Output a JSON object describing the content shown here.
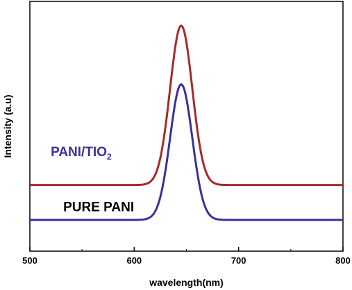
{
  "chart_data": {
    "type": "line",
    "title": "",
    "xlabel": "wavelength(nm)",
    "ylabel": "Intensity (a.u)",
    "xlim": [
      500,
      800
    ],
    "x_ticks": [
      "500",
      "600",
      "700",
      "800"
    ],
    "y_ticks_shown": false,
    "grid": false,
    "legend": "inline-labels",
    "series": [
      {
        "name": "PANI/TIO",
        "name_subscript": "2",
        "color": "#a52a2a",
        "baseline": 0.265,
        "peak": 0.903,
        "peak_x": 645,
        "fwhm": 25,
        "label_x": 520,
        "label_y": 0.38
      },
      {
        "name": "PURE PANI",
        "color": "#3a2f9c",
        "baseline": 0.125,
        "peak": 0.668,
        "peak_x": 645,
        "fwhm": 25,
        "label_x": 532,
        "label_y": 0.16
      }
    ],
    "series_label_colors": [
      "#3a2f9c",
      "#000000"
    ]
  }
}
